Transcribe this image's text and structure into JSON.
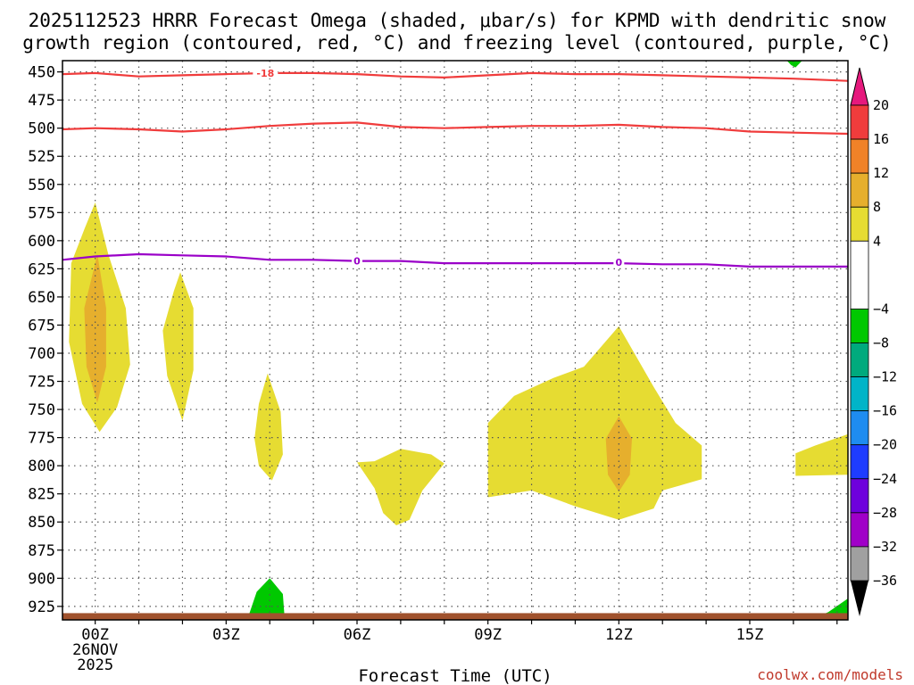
{
  "chart_data": {
    "type": "time-height-contour",
    "title_lines": [
      "2025112523 HRRR Forecast Omega (shaded, μbar/s) for KPMD with dendritic snow",
      "growth region (contoured, red, °C) and freezing level (contoured, purple, °C)"
    ],
    "xlabel": "Forecast Time (UTC)",
    "credit": "coolwx.com/models",
    "x_range": [
      -0.75,
      17.25
    ],
    "y_range": [
      440,
      937
    ],
    "x_ticks": [
      {
        "h": 0,
        "lines": [
          "00Z",
          "26NOV",
          "2025"
        ]
      },
      {
        "h": 3,
        "lines": [
          "03Z"
        ]
      },
      {
        "h": 6,
        "lines": [
          "06Z"
        ]
      },
      {
        "h": 9,
        "lines": [
          "09Z"
        ]
      },
      {
        "h": 12,
        "lines": [
          "12Z"
        ]
      },
      {
        "h": 15,
        "lines": [
          "15Z"
        ]
      }
    ],
    "y_ticks": [
      450,
      475,
      500,
      525,
      550,
      575,
      600,
      625,
      650,
      675,
      700,
      725,
      750,
      775,
      800,
      825,
      850,
      875,
      900,
      925
    ],
    "colorbar": {
      "labels": [
        20,
        16,
        12,
        8,
        4,
        -4,
        -8,
        -12,
        -16,
        -20,
        -24,
        -28,
        -32,
        -36
      ],
      "bins": [
        {
          "from": 20,
          "to": 16,
          "color": "#f03c3c"
        },
        {
          "from": 16,
          "to": 12,
          "color": "#f08228"
        },
        {
          "from": 12,
          "to": 8,
          "color": "#e6af2d"
        },
        {
          "from": 8,
          "to": 4,
          "color": "#e6dc32"
        },
        {
          "from": 4,
          "to": -4,
          "color": "#ffffff"
        },
        {
          "from": -4,
          "to": -8,
          "color": "#00c800"
        },
        {
          "from": -8,
          "to": -12,
          "color": "#00aa7d"
        },
        {
          "from": -12,
          "to": -16,
          "color": "#00b4c8"
        },
        {
          "from": -16,
          "to": -20,
          "color": "#1e8cf0"
        },
        {
          "from": -20,
          "to": -24,
          "color": "#1e3cff"
        },
        {
          "from": -24,
          "to": -28,
          "color": "#6e00dc"
        },
        {
          "from": -28,
          "to": -32,
          "color": "#a000c8"
        },
        {
          "from": -32,
          "to": -36,
          "color": "#a0a0a0"
        }
      ],
      "top_arrow_color": "#e6197d",
      "bottom_arrow_color": "#000000"
    },
    "contours": [
      {
        "name": "minus-18-contour",
        "color": "#f03c3c",
        "label": "-18",
        "label_at": [
          3.9,
          451
        ],
        "points": [
          [
            -0.75,
            452
          ],
          [
            0,
            451
          ],
          [
            1,
            454
          ],
          [
            2,
            453
          ],
          [
            3,
            452
          ],
          [
            4,
            451
          ],
          [
            5,
            451
          ],
          [
            6,
            452
          ],
          [
            7,
            454
          ],
          [
            8,
            455
          ],
          [
            9,
            453
          ],
          [
            10,
            451
          ],
          [
            11,
            452
          ],
          [
            12,
            452
          ],
          [
            13,
            453
          ],
          [
            14,
            454
          ],
          [
            15,
            455
          ],
          [
            16,
            456
          ],
          [
            17.25,
            458
          ]
        ]
      },
      {
        "name": "minus-12-contour",
        "color": "#f03c3c",
        "label": "",
        "points": [
          [
            -0.75,
            501
          ],
          [
            0,
            500
          ],
          [
            1,
            501
          ],
          [
            2,
            503
          ],
          [
            3,
            501
          ],
          [
            4,
            498
          ],
          [
            5,
            496
          ],
          [
            6,
            495
          ],
          [
            7,
            499
          ],
          [
            8,
            500
          ],
          [
            9,
            499
          ],
          [
            10,
            498
          ],
          [
            11,
            498
          ],
          [
            12,
            497
          ],
          [
            13,
            499
          ],
          [
            14,
            500
          ],
          [
            15,
            503
          ],
          [
            16,
            504
          ],
          [
            17.25,
            505
          ]
        ]
      },
      {
        "name": "freezing-level-contour",
        "color": "#9a00c8",
        "label": "0",
        "label_at": [
          6,
          618
        ],
        "label2_at": [
          12,
          619
        ],
        "points": [
          [
            -0.75,
            617
          ],
          [
            0,
            614
          ],
          [
            1,
            612
          ],
          [
            2,
            613
          ],
          [
            3,
            614
          ],
          [
            4,
            617
          ],
          [
            5,
            617
          ],
          [
            6,
            618
          ],
          [
            7,
            618
          ],
          [
            8,
            620
          ],
          [
            9,
            620
          ],
          [
            10,
            620
          ],
          [
            11,
            620
          ],
          [
            12,
            620
          ],
          [
            13,
            621
          ],
          [
            14,
            621
          ],
          [
            15,
            623
          ],
          [
            16,
            623
          ],
          [
            17.25,
            623
          ]
        ]
      }
    ],
    "omega_regions": [
      {
        "name": "omega-yellow-00z",
        "color": "#e6dc32",
        "points": [
          [
            0.0,
            566
          ],
          [
            0.3,
            612
          ],
          [
            0.7,
            660
          ],
          [
            0.8,
            710
          ],
          [
            0.5,
            748
          ],
          [
            0.1,
            770
          ],
          [
            -0.3,
            745
          ],
          [
            -0.6,
            690
          ],
          [
            -0.55,
            620
          ],
          [
            -0.25,
            590
          ]
        ]
      },
      {
        "name": "omega-orange-00z",
        "color": "#e6af2d",
        "points": [
          [
            0.05,
            612
          ],
          [
            0.25,
            660
          ],
          [
            0.25,
            712
          ],
          [
            0.05,
            744
          ],
          [
            -0.2,
            712
          ],
          [
            -0.25,
            660
          ]
        ]
      },
      {
        "name": "omega-yellow-02z",
        "color": "#e6dc32",
        "points": [
          [
            1.95,
            628
          ],
          [
            2.25,
            660
          ],
          [
            2.25,
            715
          ],
          [
            2.0,
            760
          ],
          [
            1.65,
            720
          ],
          [
            1.55,
            680
          ],
          [
            1.8,
            645
          ]
        ]
      },
      {
        "name": "omega-yellow-04z",
        "color": "#e6dc32",
        "points": [
          [
            3.95,
            718
          ],
          [
            4.25,
            752
          ],
          [
            4.3,
            790
          ],
          [
            4.05,
            813
          ],
          [
            3.75,
            800
          ],
          [
            3.65,
            776
          ],
          [
            3.75,
            745
          ]
        ]
      },
      {
        "name": "omega-yellow-07z",
        "color": "#e6dc32",
        "points": [
          [
            6.0,
            797
          ],
          [
            6.4,
            796
          ],
          [
            7.0,
            785
          ],
          [
            7.7,
            790
          ],
          [
            8.0,
            798
          ],
          [
            7.5,
            822
          ],
          [
            7.2,
            848
          ],
          [
            6.9,
            853
          ],
          [
            6.6,
            842
          ],
          [
            6.4,
            820
          ]
        ]
      },
      {
        "name": "omega-yellow-12z",
        "color": "#e6dc32",
        "points": [
          [
            9.0,
            762
          ],
          [
            9.6,
            738
          ],
          [
            10.5,
            722
          ],
          [
            11.2,
            712
          ],
          [
            12.0,
            676
          ],
          [
            12.8,
            730
          ],
          [
            13.3,
            762
          ],
          [
            13.9,
            782
          ],
          [
            13.9,
            812
          ],
          [
            13.0,
            822
          ],
          [
            12.8,
            838
          ],
          [
            12.0,
            848
          ],
          [
            11.0,
            836
          ],
          [
            10.0,
            822
          ],
          [
            9.0,
            828
          ]
        ]
      },
      {
        "name": "omega-orange-12z",
        "color": "#e6af2d",
        "points": [
          [
            12.0,
            756
          ],
          [
            12.3,
            776
          ],
          [
            12.25,
            808
          ],
          [
            12.0,
            823
          ],
          [
            11.75,
            808
          ],
          [
            11.7,
            776
          ]
        ]
      },
      {
        "name": "omega-yellow-16z",
        "color": "#e6dc32",
        "points": [
          [
            16.05,
            789
          ],
          [
            16.5,
            782
          ],
          [
            17.25,
            772
          ],
          [
            17.25,
            808
          ],
          [
            16.05,
            809
          ]
        ]
      },
      {
        "name": "omega-green-04z",
        "color": "#00c800",
        "points": [
          [
            4.0,
            900
          ],
          [
            4.3,
            914
          ],
          [
            4.35,
            940
          ],
          [
            4.05,
            955
          ],
          [
            3.6,
            950
          ],
          [
            3.5,
            935
          ],
          [
            3.7,
            912
          ]
        ]
      },
      {
        "name": "omega-green-17z",
        "color": "#00c800",
        "points": [
          [
            17.25,
            918
          ],
          [
            16.8,
            930
          ],
          [
            16.1,
            942
          ],
          [
            16.8,
            948
          ],
          [
            17.25,
            953
          ]
        ]
      },
      {
        "name": "omega-green-16z-top",
        "color": "#00c800",
        "points": [
          [
            15.85,
            440
          ],
          [
            16.2,
            440
          ],
          [
            16.05,
            446
          ],
          [
            15.95,
            444
          ]
        ]
      }
    ],
    "surface": {
      "name": "ground-surface-bar",
      "color": "#a0522d",
      "pressure_top": 931
    }
  }
}
